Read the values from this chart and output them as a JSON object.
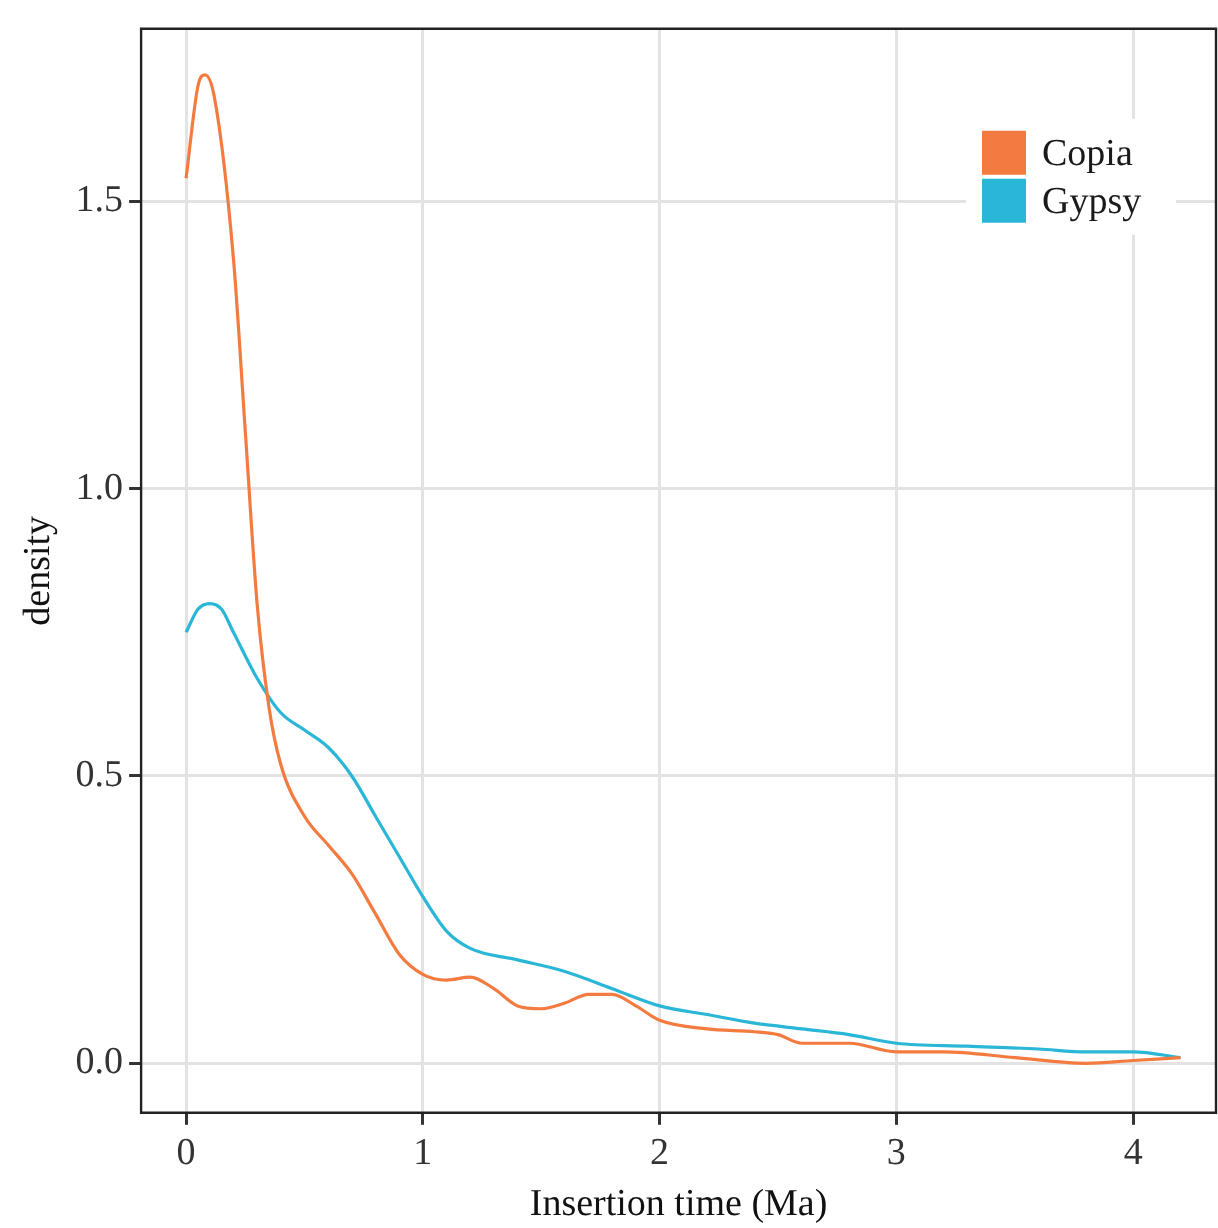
{
  "chart_data": {
    "type": "line",
    "xlabel": "Insertion time (Ma)",
    "ylabel": "density",
    "xlim": [
      -0.19,
      4.35
    ],
    "xticks": [
      0,
      1,
      2,
      3,
      4
    ],
    "ylim": [
      -0.086,
      1.8
    ],
    "yticks": [
      {
        "value": 0,
        "label": "0.0"
      },
      {
        "value": 0.5,
        "label": "0.5"
      },
      {
        "value": 1,
        "label": "1.0"
      },
      {
        "value": 1.5,
        "label": "1.5"
      }
    ],
    "grid": true,
    "legend": "top right",
    "marker": "none",
    "line_style": "solid",
    "series": [
      {
        "name": "Copia",
        "color": "#f47b3f",
        "x": [
          0,
          0.05,
          0.08,
          0.12,
          0.2,
          0.25,
          0.3,
          0.35,
          0.4,
          0.5,
          0.6,
          0.7,
          0.8,
          0.9,
          1.0,
          1.1,
          1.2,
          1.3,
          1.4,
          1.5,
          1.6,
          1.7,
          1.8,
          1.9,
          2.0,
          2.2,
          2.4,
          2.5,
          2.6,
          2.8,
          3.0,
          3.2,
          3.5,
          3.8,
          4.0,
          4.2
        ],
        "values": [
          1.54,
          1.7,
          1.72,
          1.68,
          1.4,
          1.1,
          0.8,
          0.62,
          0.52,
          0.43,
          0.38,
          0.33,
          0.26,
          0.19,
          0.155,
          0.145,
          0.15,
          0.13,
          0.1,
          0.095,
          0.105,
          0.12,
          0.12,
          0.1,
          0.075,
          0.06,
          0.055,
          0.05,
          0.035,
          0.035,
          0.02,
          0.02,
          0.01,
          0.0,
          0.005,
          0.01
        ]
      },
      {
        "name": "Gypsy",
        "color": "#2ab6d6",
        "x": [
          0,
          0.05,
          0.1,
          0.15,
          0.2,
          0.3,
          0.4,
          0.5,
          0.6,
          0.7,
          0.8,
          0.9,
          1.0,
          1.1,
          1.2,
          1.4,
          1.6,
          1.8,
          2.0,
          2.2,
          2.4,
          2.6,
          2.8,
          3.0,
          3.3,
          3.6,
          3.8,
          4.0,
          4.2
        ],
        "values": [
          0.75,
          0.79,
          0.8,
          0.79,
          0.75,
          0.67,
          0.61,
          0.58,
          0.55,
          0.5,
          0.43,
          0.36,
          0.29,
          0.23,
          0.2,
          0.18,
          0.16,
          0.13,
          0.1,
          0.085,
          0.07,
          0.06,
          0.05,
          0.035,
          0.03,
          0.025,
          0.02,
          0.02,
          0.01
        ]
      }
    ]
  }
}
